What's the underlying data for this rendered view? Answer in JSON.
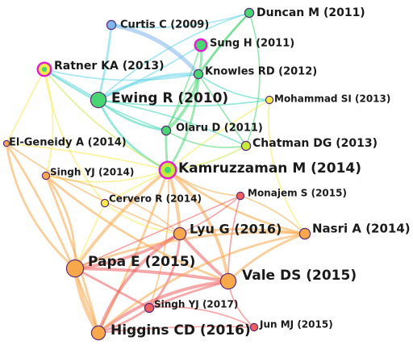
{
  "network": {
    "colors": {
      "cyan": "#5fd3e8",
      "blue": "#7fb6ec",
      "teal": "#3ed6b6",
      "green": "#48d672",
      "lime": "#c5ea3a",
      "yellow": "#f7ea4a",
      "orange": "#f7a84a",
      "red": "#ee5f5f",
      "magenta": "#e01fcf",
      "purple": "#5a2a78"
    },
    "nodes": [
      {
        "id": "curtis2009",
        "label": "Curtis C (2009)",
        "fill": "blue",
        "ring": "purple",
        "degree": 2
      },
      {
        "id": "duncan2011",
        "label": "Duncan M (2011)",
        "fill": "green",
        "ring": "purple",
        "degree": 2
      },
      {
        "id": "sung2011",
        "label": "Sung H (2011)",
        "fill": "green",
        "ring": "magenta",
        "degree": 2
      },
      {
        "id": "ratner2013",
        "label": "Ratner KA (2013)",
        "fill": "yellow",
        "ring": "magenta",
        "degree": 3
      },
      {
        "id": "knowles2012",
        "label": "Knowles RD (2012)",
        "fill": "green",
        "ring": "purple",
        "degree": 2
      },
      {
        "id": "ewing2010",
        "label": "Ewing R (2010)",
        "fill": "green",
        "ring": "purple",
        "degree": 5
      },
      {
        "id": "mohammad2013",
        "label": "Mohammad SI (2013)",
        "fill": "yellow",
        "ring": "purple",
        "degree": 1
      },
      {
        "id": "olaru2011",
        "label": "Olaru D (2011)",
        "fill": "green",
        "ring": "purple",
        "degree": 2
      },
      {
        "id": "elgeneidy2014",
        "label": "El-Geneidy A (2014)",
        "fill": "orange",
        "ring": "purple",
        "degree": 1
      },
      {
        "id": "chatman2013",
        "label": "Chatman DG (2013)",
        "fill": "lime",
        "ring": "purple",
        "degree": 2
      },
      {
        "id": "singh2014",
        "label": "Singh YJ (2014)",
        "fill": "orange",
        "ring": "purple",
        "degree": 1
      },
      {
        "id": "kamruzzaman2014",
        "label": "Kamruzzaman M (2014)",
        "fill": "lime",
        "ring": "magenta",
        "degree": 5
      },
      {
        "id": "cervero2014",
        "label": "Cervero R (2014)",
        "fill": "yellow",
        "ring": "purple",
        "degree": 1
      },
      {
        "id": "monajem2015",
        "label": "Monajem S (2015)",
        "fill": "red",
        "ring": "purple",
        "degree": 1
      },
      {
        "id": "lyu2016",
        "label": "Lyu G (2016)",
        "fill": "orange",
        "ring": "purple",
        "degree": 4
      },
      {
        "id": "nasri2014",
        "label": "Nasri A (2014)",
        "fill": "orange",
        "ring": "purple",
        "degree": 3
      },
      {
        "id": "papa2015",
        "label": "Papa E (2015)",
        "fill": "orange",
        "ring": "purple",
        "degree": 5
      },
      {
        "id": "vale2015",
        "label": "Vale DS (2015)",
        "fill": "orange",
        "ring": "purple",
        "degree": 5
      },
      {
        "id": "singh2017",
        "label": "Singh YJ (2017)",
        "fill": "red",
        "ring": "purple",
        "degree": 2
      },
      {
        "id": "higgins2016",
        "label": "Higgins CD (2016)",
        "fill": "orange",
        "ring": "purple",
        "degree": 5
      },
      {
        "id": "jun2015",
        "label": "Jun MJ (2015)",
        "fill": "red",
        "ring": "purple",
        "degree": 1
      }
    ],
    "edges": [
      {
        "source": "curtis2009",
        "target": "knowles2012",
        "color": "blue",
        "weight": 4
      },
      {
        "source": "curtis2009",
        "target": "ewing2010",
        "color": "cyan",
        "weight": 2
      },
      {
        "source": "curtis2009",
        "target": "duncan2011",
        "color": "cyan",
        "weight": 1
      },
      {
        "source": "ewing2010",
        "target": "knowles2012",
        "color": "cyan",
        "weight": 3
      },
      {
        "source": "ewing2010",
        "target": "ratner2013",
        "color": "cyan",
        "weight": 2
      },
      {
        "source": "ewing2010",
        "target": "olaru2011",
        "color": "teal",
        "weight": 2
      },
      {
        "source": "ewing2010",
        "target": "duncan2011",
        "color": "cyan",
        "weight": 1
      },
      {
        "source": "ewing2010",
        "target": "sung2011",
        "color": "cyan",
        "weight": 1
      },
      {
        "source": "ewing2010",
        "target": "kamruzzaman2014",
        "color": "teal",
        "weight": 2
      },
      {
        "source": "ewing2010",
        "target": "chatman2013",
        "color": "teal",
        "weight": 1
      },
      {
        "source": "ewing2010",
        "target": "mohammad2013",
        "color": "teal",
        "weight": 1
      },
      {
        "source": "knowles2012",
        "target": "olaru2011",
        "color": "green",
        "weight": 3
      },
      {
        "source": "knowles2012",
        "target": "duncan2011",
        "color": "green",
        "weight": 2
      },
      {
        "source": "knowles2012",
        "target": "sung2011",
        "color": "green",
        "weight": 2
      },
      {
        "source": "knowles2012",
        "target": "kamruzzaman2014",
        "color": "green",
        "weight": 2
      },
      {
        "source": "knowles2012",
        "target": "chatman2013",
        "color": "green",
        "weight": 1
      },
      {
        "source": "knowles2012",
        "target": "mohammad2013",
        "color": "teal",
        "weight": 1
      },
      {
        "source": "knowles2012",
        "target": "ratner2013",
        "color": "cyan",
        "weight": 1
      },
      {
        "source": "olaru2011",
        "target": "kamruzzaman2014",
        "color": "green",
        "weight": 2
      },
      {
        "source": "olaru2011",
        "target": "chatman2013",
        "color": "green",
        "weight": 1
      },
      {
        "source": "olaru2011",
        "target": "ratner2013",
        "color": "teal",
        "weight": 1
      },
      {
        "source": "duncan2011",
        "target": "olaru2011",
        "color": "green",
        "weight": 1
      },
      {
        "source": "duncan2011",
        "target": "chatman2013",
        "color": "green",
        "weight": 1
      },
      {
        "source": "sung2011",
        "target": "olaru2011",
        "color": "green",
        "weight": 1
      },
      {
        "source": "ratner2013",
        "target": "kamruzzaman2014",
        "color": "lime",
        "weight": 1
      },
      {
        "source": "ratner2013",
        "target": "singh2014",
        "color": "yellow",
        "weight": 1
      },
      {
        "source": "ratner2013",
        "target": "elgeneidy2014",
        "color": "yellow",
        "weight": 1
      },
      {
        "source": "ratner2013",
        "target": "cervero2014",
        "color": "yellow",
        "weight": 1
      },
      {
        "source": "chatman2013",
        "target": "kamruzzaman2014",
        "color": "lime",
        "weight": 1
      },
      {
        "source": "mohammad2013",
        "target": "kamruzzaman2014",
        "color": "yellow",
        "weight": 1
      },
      {
        "source": "mohammad2013",
        "target": "nasri2014",
        "color": "yellow",
        "weight": 1
      },
      {
        "source": "kamruzzaman2014",
        "target": "lyu2016",
        "color": "orange",
        "weight": 3
      },
      {
        "source": "kamruzzaman2014",
        "target": "papa2015",
        "color": "orange",
        "weight": 3
      },
      {
        "source": "kamruzzaman2014",
        "target": "vale2015",
        "color": "orange",
        "weight": 3
      },
      {
        "source": "kamruzzaman2014",
        "target": "higgins2016",
        "color": "orange",
        "weight": 2
      },
      {
        "source": "kamruzzaman2014",
        "target": "nasri2014",
        "color": "orange",
        "weight": 2
      },
      {
        "source": "kamruzzaman2014",
        "target": "singh2014",
        "color": "yellow",
        "weight": 1
      },
      {
        "source": "kamruzzaman2014",
        "target": "cervero2014",
        "color": "yellow",
        "weight": 1
      },
      {
        "source": "kamruzzaman2014",
        "target": "monajem2015",
        "color": "orange",
        "weight": 1
      },
      {
        "source": "kamruzzaman2014",
        "target": "singh2017",
        "color": "orange",
        "weight": 1
      },
      {
        "source": "kamruzzaman2014",
        "target": "elgeneidy2014",
        "color": "yellow",
        "weight": 1
      },
      {
        "source": "elgeneidy2014",
        "target": "papa2015",
        "color": "orange",
        "weight": 2
      },
      {
        "source": "elgeneidy2014",
        "target": "higgins2016",
        "color": "orange",
        "weight": 2
      },
      {
        "source": "elgeneidy2014",
        "target": "lyu2016",
        "color": "orange",
        "weight": 1
      },
      {
        "source": "singh2014",
        "target": "papa2015",
        "color": "orange",
        "weight": 2
      },
      {
        "source": "singh2014",
        "target": "higgins2016",
        "color": "orange",
        "weight": 2
      },
      {
        "source": "singh2014",
        "target": "vale2015",
        "color": "orange",
        "weight": 2
      },
      {
        "source": "singh2014",
        "target": "lyu2016",
        "color": "orange",
        "weight": 1
      },
      {
        "source": "cervero2014",
        "target": "papa2015",
        "color": "yellow",
        "weight": 1
      },
      {
        "source": "cervero2014",
        "target": "lyu2016",
        "color": "yellow",
        "weight": 1
      },
      {
        "source": "lyu2016",
        "target": "papa2015",
        "color": "red",
        "weight": 3
      },
      {
        "source": "lyu2016",
        "target": "vale2015",
        "color": "red",
        "weight": 3
      },
      {
        "source": "lyu2016",
        "target": "higgins2016",
        "color": "red",
        "weight": 3
      },
      {
        "source": "lyu2016",
        "target": "nasri2014",
        "color": "orange",
        "weight": 2
      },
      {
        "source": "lyu2016",
        "target": "monajem2015",
        "color": "red",
        "weight": 1
      },
      {
        "source": "lyu2016",
        "target": "singh2017",
        "color": "red",
        "weight": 2
      },
      {
        "source": "papa2015",
        "target": "vale2015",
        "color": "red",
        "weight": 3
      },
      {
        "source": "papa2015",
        "target": "higgins2016",
        "color": "orange",
        "weight": 4
      },
      {
        "source": "papa2015",
        "target": "nasri2014",
        "color": "orange",
        "weight": 2
      },
      {
        "source": "papa2015",
        "target": "singh2017",
        "color": "red",
        "weight": 2
      },
      {
        "source": "vale2015",
        "target": "higgins2016",
        "color": "red",
        "weight": 3
      },
      {
        "source": "vale2015",
        "target": "nasri2014",
        "color": "orange",
        "weight": 2
      },
      {
        "source": "vale2015",
        "target": "singh2017",
        "color": "red",
        "weight": 2
      },
      {
        "source": "vale2015",
        "target": "jun2015",
        "color": "red",
        "weight": 1
      },
      {
        "source": "vale2015",
        "target": "monajem2015",
        "color": "red",
        "weight": 1
      },
      {
        "source": "higgins2016",
        "target": "singh2017",
        "color": "red",
        "weight": 2
      },
      {
        "source": "higgins2016",
        "target": "nasri2014",
        "color": "orange",
        "weight": 2
      },
      {
        "source": "higgins2016",
        "target": "jun2015",
        "color": "red",
        "weight": 1
      },
      {
        "source": "nasri2014",
        "target": "monajem2015",
        "color": "orange",
        "weight": 1
      },
      {
        "source": "singh2017",
        "target": "jun2015",
        "color": "red",
        "weight": 1
      },
      {
        "source": "monajem2015",
        "target": "papa2015",
        "color": "red",
        "weight": 1
      }
    ]
  }
}
